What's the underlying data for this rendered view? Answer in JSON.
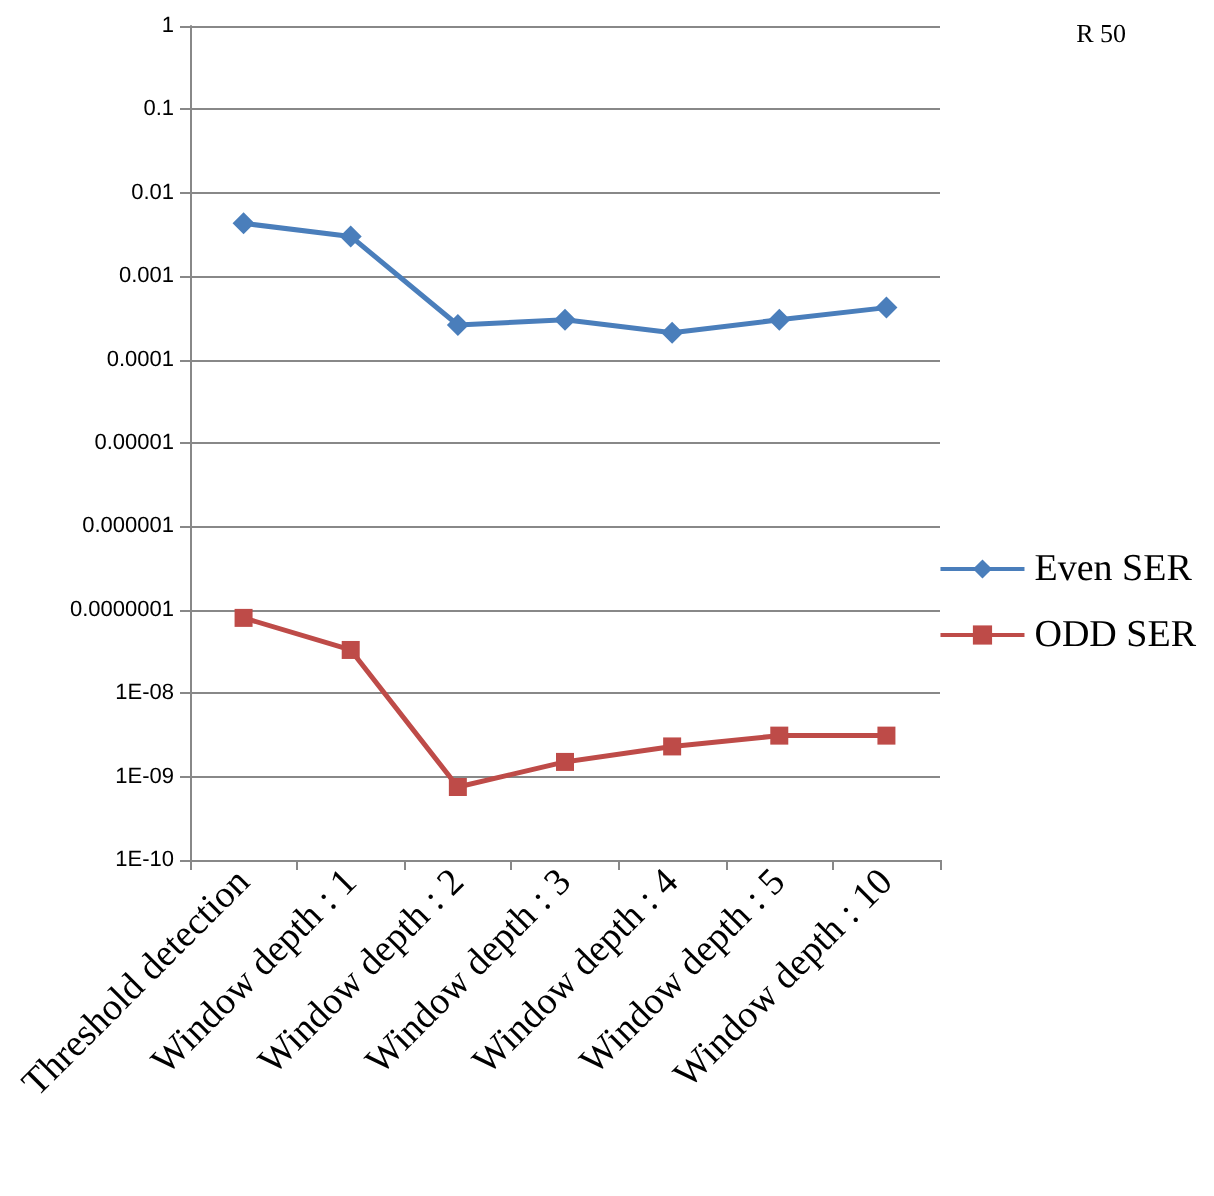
{
  "chart_data": {
    "type": "line",
    "categories": [
      "Threshold detection",
      "Window depth : 1",
      "Window depth : 2",
      "Window depth : 3",
      "Window depth : 4",
      "Window depth : 5",
      "Window depth : 10"
    ],
    "series": [
      {
        "name": "Even SER",
        "color": "#4a7ebb",
        "marker": "diamond",
        "values": [
          0.0043,
          0.003,
          0.00026,
          0.0003,
          0.00021,
          0.0003,
          0.00042
        ]
      },
      {
        "name": "ODD SER",
        "color": "#be4b48",
        "marker": "square",
        "values": [
          8e-08,
          3.3e-08,
          7.5e-10,
          1.5e-09,
          2.3e-09,
          3.1e-09,
          3.1e-09
        ]
      }
    ],
    "log": "y",
    "ylim": [
      1e-10,
      1
    ],
    "yticks": [
      {
        "value": 1e-10,
        "label": "1E-10"
      },
      {
        "value": 1e-09,
        "label": "1E-09"
      },
      {
        "value": 1e-08,
        "label": "1E-08"
      },
      {
        "value": 1e-07,
        "label": "0.0000001"
      },
      {
        "value": 1e-06,
        "label": "0.000001"
      },
      {
        "value": 1e-05,
        "label": "0.00001"
      },
      {
        "value": 0.0001,
        "label": "0.0001"
      },
      {
        "value": 0.001,
        "label": "0.001"
      },
      {
        "value": 0.01,
        "label": "0.01"
      },
      {
        "value": 0.1,
        "label": "0.1"
      },
      {
        "value": 1,
        "label": "1"
      }
    ],
    "grid": "y",
    "legend": "right",
    "annotations": [
      "R 50"
    ]
  }
}
